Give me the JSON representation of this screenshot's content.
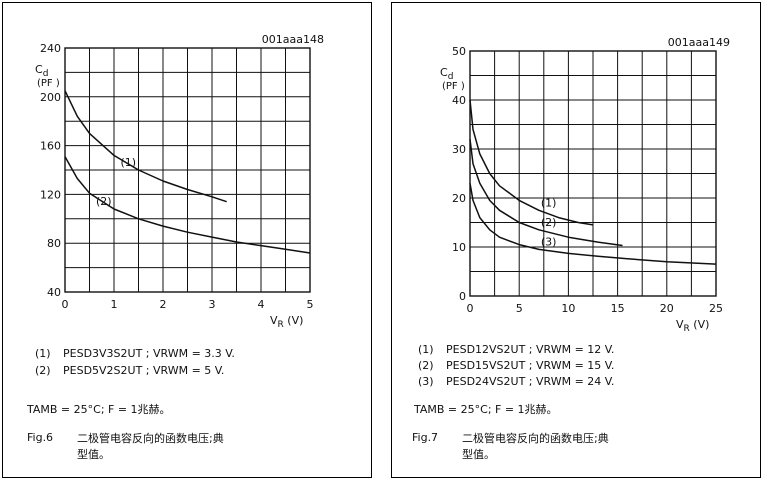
{
  "chart_data": [
    {
      "type": "line",
      "id": "001aaa148",
      "ylabel": "Cd",
      "yunit": "(PF )",
      "xlabel": "VR",
      "xunit": "(V)",
      "xlim": [
        0,
        5
      ],
      "ylim": [
        40,
        240
      ],
      "xticks": [
        0,
        1,
        2,
        3,
        4,
        5
      ],
      "yticks": [
        40,
        80,
        120,
        160,
        200,
        240
      ],
      "grid": true,
      "series": [
        {
          "name": "(1)",
          "x": [
            0,
            0.25,
            0.5,
            1,
            1.5,
            2,
            2.5,
            3,
            3.3
          ],
          "y": [
            205,
            184,
            170,
            152,
            140,
            131,
            124,
            118,
            114
          ]
        },
        {
          "name": "(2)",
          "x": [
            0,
            0.25,
            0.5,
            1,
            1.5,
            2,
            2.5,
            3,
            3.5,
            4,
            4.5,
            5
          ],
          "y": [
            151,
            133,
            121,
            108,
            100,
            94,
            89,
            85,
            81,
            78,
            75,
            72
          ]
        }
      ],
      "legend": [
        {
          "num": "(1)",
          "text": "PESD3V3S2UT ; VRWM = 3.3 V."
        },
        {
          "num": "(2)",
          "text": "PESD5V2S2UT ; VRWM = 5 V."
        }
      ],
      "condition": "TAMB = 25°C; F = 1兆赫。",
      "fig_label": "Fig.6",
      "fig_caption": "二极管电容反向的函数电压;典型值。"
    },
    {
      "type": "line",
      "id": "001aaa149",
      "ylabel": "Cd",
      "yunit": "(PF )",
      "xlabel": "VR",
      "xunit": "(V)",
      "xlim": [
        0,
        25
      ],
      "ylim": [
        0,
        50
      ],
      "xticks": [
        0,
        5,
        10,
        15,
        20,
        25
      ],
      "yticks": [
        0,
        10,
        20,
        30,
        40,
        50
      ],
      "grid": true,
      "series": [
        {
          "name": "(1)",
          "x": [
            0,
            0.3,
            1,
            2,
            3,
            5,
            7,
            9,
            11,
            12.5
          ],
          "y": [
            40,
            34,
            29,
            25,
            22.5,
            19.5,
            17.5,
            16,
            15,
            14.5
          ]
        },
        {
          "name": "(2)",
          "x": [
            0,
            0.3,
            1,
            2,
            3,
            5,
            7,
            10,
            13,
            15.5
          ],
          "y": [
            32,
            27,
            23,
            19.5,
            17.5,
            15,
            13.5,
            12,
            11,
            10.3
          ]
        },
        {
          "name": "(3)",
          "x": [
            0,
            0.3,
            1,
            2,
            3,
            5,
            7,
            10,
            13,
            16,
            20,
            25
          ],
          "y": [
            23,
            19.5,
            16,
            13.5,
            12,
            10.5,
            9.5,
            8.7,
            8.1,
            7.6,
            7,
            6.5
          ]
        }
      ],
      "legend": [
        {
          "num": "(1)",
          "text": "PESD12VS2UT ; VRWM = 12 V."
        },
        {
          "num": "(2)",
          "text": "PESD15VS2UT ; VRWM = 15 V."
        },
        {
          "num": "(3)",
          "text": "PESD24VS2UT ; VRWM = 24 V."
        }
      ],
      "condition": "TAMB = 25°C; F = 1兆赫。",
      "fig_label": "Fig.7",
      "fig_caption": "二极管电容反向的函数电压;典型值。"
    }
  ],
  "colors": {
    "ink": "#111111",
    "background": "#ffffff"
  }
}
